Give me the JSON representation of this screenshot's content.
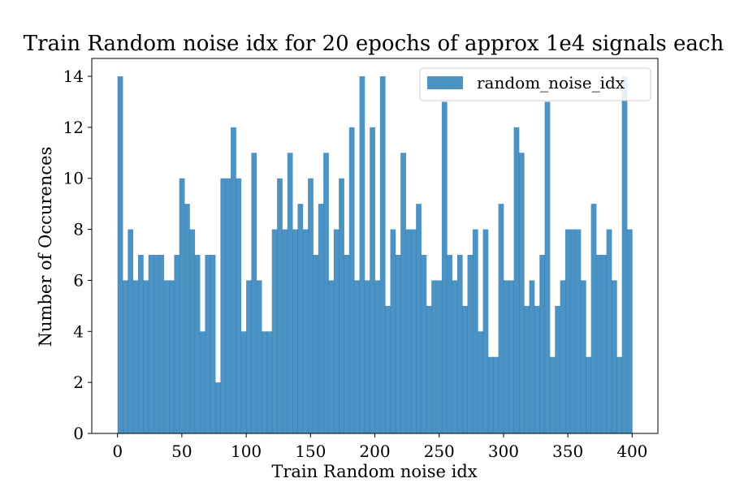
{
  "chart_data": {
    "type": "bar",
    "title": "Train Random noise idx for 20 epochs of approx 1e4 signals each",
    "xlabel": "Train Random noise idx",
    "ylabel": "Number of Occurences",
    "xlim": [
      -20,
      420
    ],
    "ylim": [
      0,
      14.7
    ],
    "xticks": [
      0,
      50,
      100,
      150,
      200,
      250,
      300,
      350,
      400
    ],
    "yticks": [
      0,
      2,
      4,
      6,
      8,
      10,
      12,
      14
    ],
    "grid": false,
    "legend_position": "top-right",
    "bin_start": 0,
    "bin_width": 4,
    "series": [
      {
        "name": "random_noise_idx",
        "color": "#1f77b4",
        "values": [
          14,
          6,
          8,
          6,
          7,
          6,
          7,
          7,
          7,
          6,
          6,
          7,
          10,
          9,
          8,
          7,
          4,
          7,
          7,
          2,
          10,
          10,
          12,
          10,
          4,
          6,
          11,
          6,
          4,
          4,
          8,
          10,
          8,
          11,
          8,
          9,
          8,
          10,
          7,
          9,
          11,
          6,
          8,
          10,
          7,
          12,
          6,
          14,
          6,
          12,
          6,
          14,
          5,
          8,
          7,
          11,
          8,
          8,
          9,
          7,
          5,
          6,
          6,
          13,
          7,
          6,
          7,
          5,
          7,
          8,
          4,
          8,
          3,
          3,
          9,
          6,
          6,
          12,
          11,
          5,
          6,
          5,
          7,
          13,
          3,
          5,
          6,
          8,
          8,
          8,
          6,
          3,
          9,
          7,
          7,
          8,
          6,
          3,
          14,
          8
        ]
      }
    ]
  }
}
